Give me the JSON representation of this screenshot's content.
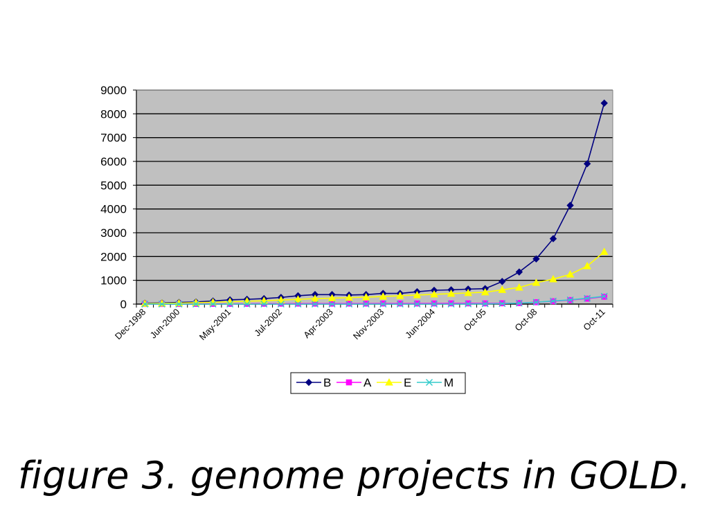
{
  "caption": "figure 3. genome projects in GOLD.",
  "colors": {
    "plot_bg": "#c0c0c0",
    "grid": "#000000",
    "B": "#000080",
    "A": "#ff00ff",
    "E": "#ffff00",
    "M": "#33cccc"
  },
  "chart_data": {
    "type": "line",
    "title": "",
    "xlabel": "",
    "ylabel": "",
    "ylim": [
      0,
      9000
    ],
    "yticks": [
      0,
      1000,
      2000,
      3000,
      4000,
      5000,
      6000,
      7000,
      8000,
      9000
    ],
    "grid": true,
    "legend_position": "bottom",
    "x_tick_labels": [
      "Dec-1998",
      "Jun-2000",
      "May-2001",
      "Jul-2002",
      "Apr-2003",
      "Nov-2003",
      "Jun-2004",
      "Oct-05",
      "Oct-08",
      "Oct-11"
    ],
    "x_tick_indices": [
      0,
      2,
      5,
      8,
      11,
      14,
      17,
      20,
      23,
      27
    ],
    "num_points": 28,
    "series": [
      {
        "name": "B",
        "marker": "diamond",
        "values": [
          40,
          50,
          70,
          90,
          130,
          180,
          200,
          230,
          280,
          350,
          400,
          400,
          380,
          400,
          450,
          450,
          520,
          580,
          600,
          630,
          650,
          950,
          1350,
          1900,
          2750,
          4150,
          5900,
          8450
        ]
      },
      {
        "name": "A",
        "marker": "square",
        "values": [
          5,
          5,
          5,
          8,
          10,
          10,
          12,
          15,
          18,
          20,
          20,
          20,
          22,
          22,
          25,
          25,
          25,
          28,
          30,
          30,
          30,
          35,
          40,
          80,
          120,
          170,
          230,
          310
        ]
      },
      {
        "name": "E",
        "marker": "triangle",
        "values": [
          20,
          30,
          40,
          60,
          80,
          100,
          120,
          140,
          170,
          200,
          230,
          250,
          270,
          290,
          320,
          350,
          380,
          410,
          440,
          470,
          500,
          600,
          700,
          900,
          1050,
          1250,
          1600,
          2200
        ]
      },
      {
        "name": "M",
        "marker": "x",
        "values": [
          0,
          0,
          0,
          0,
          0,
          0,
          0,
          0,
          0,
          0,
          0,
          0,
          0,
          0,
          0,
          0,
          0,
          0,
          0,
          5,
          10,
          20,
          40,
          80,
          130,
          180,
          250,
          330
        ]
      }
    ]
  }
}
